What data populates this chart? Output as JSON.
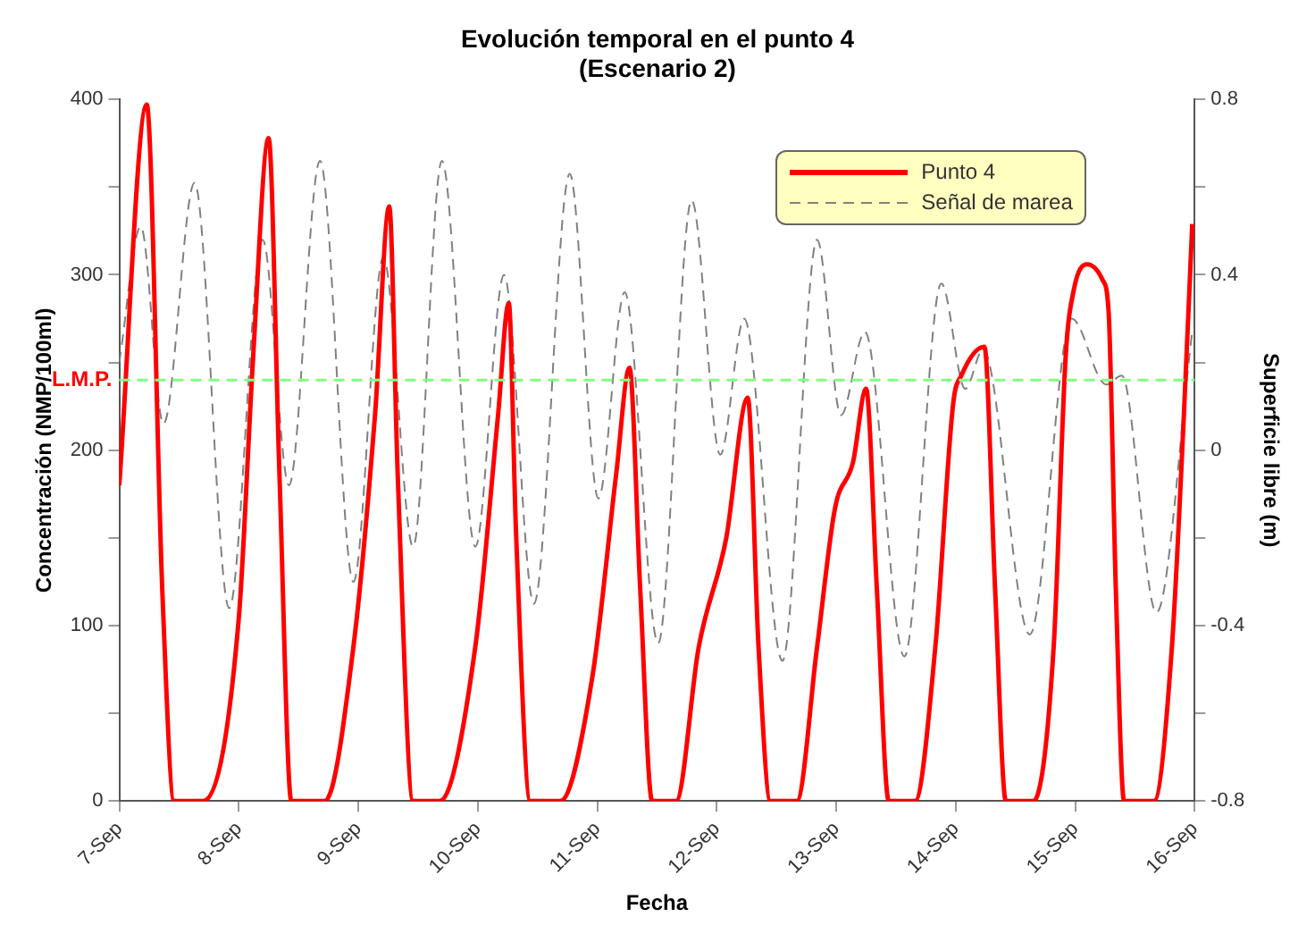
{
  "chart_data": {
    "type": "line",
    "title": "Evolución temporal en el punto 4",
    "subtitle": "(Escenario 2)",
    "xlabel": "Fecha",
    "ylabel": "Concentración (NMP/100ml)",
    "y2label": "Superficie libre (m)",
    "xlim": [
      "--09-07",
      "--09-16"
    ],
    "xticks": [
      {
        "value": "--09-07",
        "label": "7-Sep"
      },
      {
        "value": "--09-08",
        "label": "8-Sep"
      },
      {
        "value": "--09-09",
        "label": "9-Sep"
      },
      {
        "value": "--09-10",
        "label": "10-Sep"
      },
      {
        "value": "--09-11",
        "label": "11-Sep"
      },
      {
        "value": "--09-12",
        "label": "12-Sep"
      },
      {
        "value": "--09-13",
        "label": "13-Sep"
      },
      {
        "value": "--09-14",
        "label": "14-Sep"
      },
      {
        "value": "--09-15",
        "label": "15-Sep"
      },
      {
        "value": "--09-16",
        "label": "16-Sep"
      }
    ],
    "ylim": [
      0,
      400
    ],
    "yticks": [
      0,
      {
        "value": 50,
        "label": null
      },
      100,
      {
        "value": 150,
        "label": null
      },
      200,
      {
        "value": 250,
        "label": null
      },
      300,
      {
        "value": 350,
        "label": null
      },
      400
    ],
    "y2lim": [
      -0.8,
      0.8
    ],
    "y2ticks": [
      -0.8,
      {
        "value": -0.6,
        "label": null
      },
      -0.4,
      {
        "value": -0.2,
        "label": null
      },
      0,
      {
        "value": 0.2,
        "label": null
      },
      0.4,
      {
        "value": 0.6,
        "label": null
      },
      0.8
    ],
    "grid": false,
    "legend": "top right",
    "marker": "none",
    "ref_lines": [
      {
        "axis": "y",
        "value": 240,
        "label": "L.M.P.",
        "color": "#80ff80",
        "line_style": "dashed"
      }
    ],
    "series": [
      {
        "name": "Punto 4",
        "color": "#ff0000",
        "line_style": "solid",
        "x": [
          "--09-07T00:00",
          "--09-07T05:31",
          "--09-07T08:38",
          "--09-07T11:02",
          "--09-07T16:48",
          "--09-08T00:00",
          "--09-08T02:53",
          "--09-08T06:00",
          "--09-08T08:10",
          "--09-08T10:34",
          "--09-08T17:17",
          "--09-08T23:02",
          "--09-09T03:22",
          "--09-09T06:14",
          "--09-09T07:55",
          "--09-09T11:02",
          "--09-09T16:19",
          "--09-09T23:31",
          "--09-10T04:05",
          "--09-10T06:14",
          "--09-10T07:41",
          "--09-10T10:34",
          "--09-10T16:34",
          "--09-10T23:02",
          "--09-11T03:50",
          "--09-11T06:29",
          "--09-11T08:38",
          "--09-11T11:02",
          "--09-11T15:50",
          "--09-11T20:24",
          "--09-12T01:55",
          "--09-12T06:14",
          "--09-12T08:24",
          "--09-12T10:48",
          "--09-12T16:05",
          "--09-12T20:10",
          "--09-12T23:46",
          "--09-13T03:22",
          "--09-13T06:00",
          "--09-13T08:10",
          "--09-13T10:34",
          "--09-13T15:50",
          "--09-13T19:55",
          "--09-13T23:31",
          "--09-14T01:12",
          "--09-14T05:46",
          "--09-14T07:55",
          "--09-14T10:05",
          "--09-14T15:36",
          "--09-14T19:41",
          "--09-14T22:05",
          "--09-14T23:46",
          "--09-15T02:24",
          "--09-15T05:31",
          "--09-15T06:43",
          "--09-15T08:10",
          "--09-15T09:50",
          "--09-15T15:50",
          "--09-15T19:26",
          "--09-15T21:50",
          "--09-15T23:31"
        ],
        "values": [
          180,
          397,
          121,
          0,
          0,
          104,
          253,
          378,
          187,
          0,
          0,
          88,
          220,
          339,
          187,
          0,
          0,
          88,
          220,
          284,
          154,
          0,
          0,
          71,
          187,
          247,
          121,
          0,
          0,
          88,
          150,
          230,
          88,
          0,
          0,
          88,
          167,
          193,
          235,
          121,
          0,
          0,
          88,
          227,
          243,
          259,
          121,
          0,
          0,
          88,
          253,
          292,
          306,
          297,
          279,
          121,
          0,
          0,
          88,
          220,
          329
        ]
      },
      {
        "name": "Señal de marea",
        "color": "#808080",
        "line_style": "dashed",
        "axis": "y2",
        "x": [
          "--09-07T00:00",
          "--09-07T04:19",
          "--09-07T08:53",
          "--09-07T15:07",
          "--09-07T22:05",
          "--09-08T04:48",
          "--09-08T10:05",
          "--09-08T16:19",
          "--09-08T23:02",
          "--09-09T05:02",
          "--09-09T11:02",
          "--09-09T16:48",
          "--09-09T23:31",
          "--09-10T05:17",
          "--09-10T11:17",
          "--09-10T18:29",
          "--09-11T00:14",
          "--09-11T05:31",
          "--09-11T12:14",
          "--09-11T18:58",
          "--09-12T00:43",
          "--09-12T05:31",
          "--09-12T13:12",
          "--09-12T20:10",
          "--09-13T00:58",
          "--09-13T05:46",
          "--09-13T13:41",
          "--09-13T21:07",
          "--09-14T01:55",
          "--09-14T05:31",
          "--09-14T14:53",
          "--09-14T23:17",
          "--09-15T06:14",
          "--09-15T09:22",
          "--09-15T16:19",
          "--09-15T23:31"
        ],
        "values": [
          0.2,
          0.51,
          0.06,
          0.61,
          -0.36,
          0.48,
          -0.08,
          0.66,
          -0.3,
          0.44,
          -0.22,
          0.66,
          -0.22,
          0.4,
          -0.35,
          0.63,
          -0.11,
          0.36,
          -0.44,
          0.57,
          -0.01,
          0.3,
          -0.48,
          0.48,
          0.08,
          0.27,
          -0.47,
          0.38,
          0.14,
          0.23,
          -0.42,
          0.3,
          0.15,
          0.17,
          -0.37,
          0.27
        ]
      }
    ]
  }
}
